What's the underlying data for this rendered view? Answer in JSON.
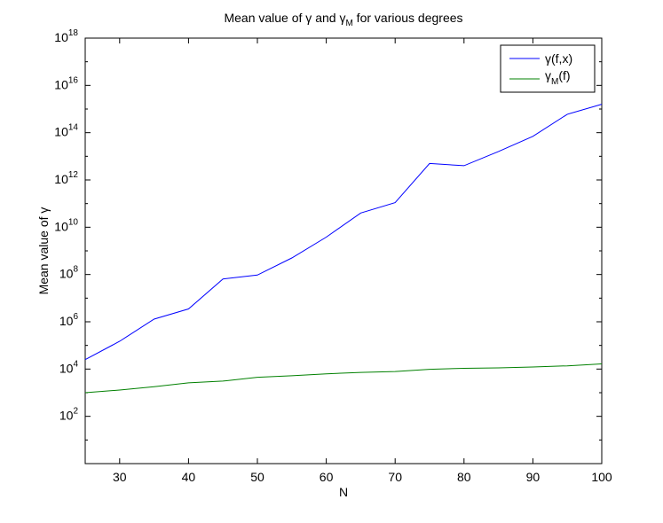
{
  "chart_data": {
    "type": "line",
    "title": "Mean value of γ and γ",
    "title_subscript": "M",
    "title_suffix": " for various degrees",
    "xlabel": "N",
    "ylabel": "Mean value of γ",
    "xlim": [
      25,
      100
    ],
    "ylim_exponent": [
      0,
      18
    ],
    "yscale": "log",
    "grid": false,
    "legend_position": "top-right",
    "x_ticks": [
      "30",
      "40",
      "50",
      "60",
      "70",
      "80",
      "90",
      "100"
    ],
    "y_ticks": [
      {
        "base": "10",
        "exp": "2"
      },
      {
        "base": "10",
        "exp": "4"
      },
      {
        "base": "10",
        "exp": "6"
      },
      {
        "base": "10",
        "exp": "8"
      },
      {
        "base": "10",
        "exp": "10"
      },
      {
        "base": "10",
        "exp": "12"
      },
      {
        "base": "10",
        "exp": "14"
      },
      {
        "base": "10",
        "exp": "16"
      },
      {
        "base": "10",
        "exp": "18"
      }
    ],
    "x": [
      25,
      30,
      35,
      40,
      45,
      50,
      55,
      60,
      65,
      70,
      75,
      80,
      85,
      90,
      95,
      100
    ],
    "series": [
      {
        "name": "γ(f,x)",
        "color": "#0000ff",
        "values": [
          25000.0,
          150000.0,
          1300000.0,
          3500000.0,
          65000000.0,
          95000000.0,
          500000000.0,
          3800000000.0,
          40000000000.0,
          110000000000.0,
          5000000000000.0,
          4000000000000.0,
          16000000000000.0,
          70000000000000.0,
          600000000000000.0,
          1600000000000000.0
        ]
      },
      {
        "name": "γ",
        "name_subscript": "M",
        "name_suffix": "(f)",
        "color": "#008000",
        "values": [
          1000.0,
          1300.0,
          1800.0,
          2600.0,
          3100.0,
          4500.0,
          5200.0,
          6300.0,
          7200.0,
          7900.0,
          9800.0,
          10700.0,
          11200.0,
          12200.0,
          13700.0,
          16500.0
        ]
      }
    ]
  }
}
